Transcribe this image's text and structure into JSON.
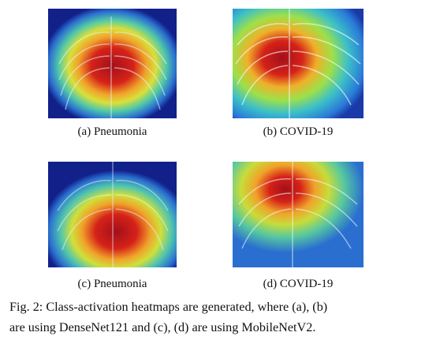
{
  "figure": {
    "panels": [
      {
        "label": "(a) Pneumonia"
      },
      {
        "label": "(b) COVID-19"
      },
      {
        "label": "(c) Pneumonia"
      },
      {
        "label": "(d) COVID-19"
      }
    ],
    "caption_line1": "Fig. 2: Class-activation heatmaps are generated, where (a), (b)",
    "caption_line2": "are using DenseNet121 and (c), (d) are using MobileNetV2."
  },
  "colors": {
    "cold": "#12208a",
    "cool": "#2f9be0",
    "mid": "#6fdc5a",
    "warm": "#f0d22c",
    "hot": "#e23a1a",
    "core": "#a3101b"
  }
}
